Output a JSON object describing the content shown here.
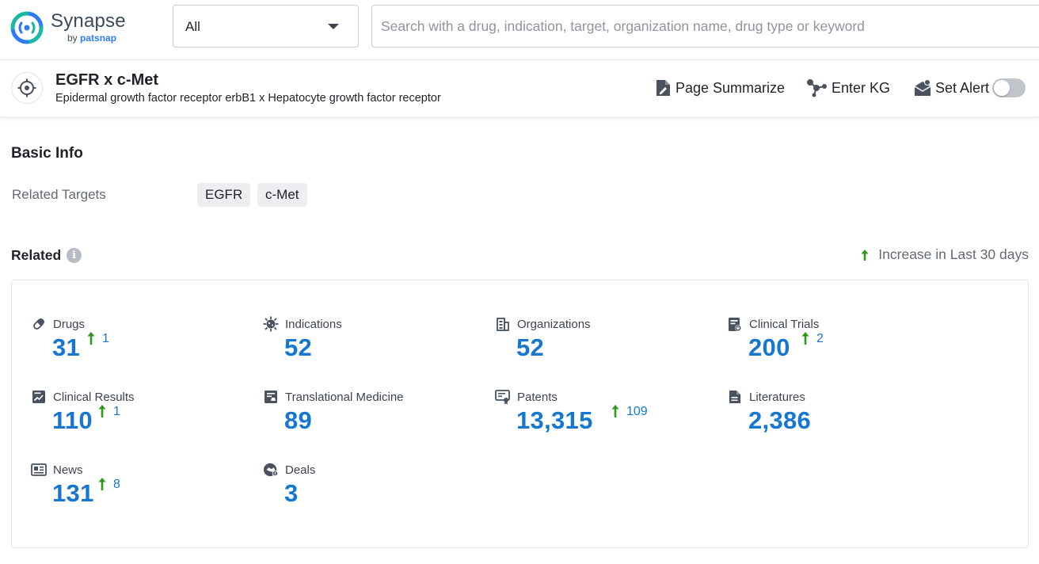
{
  "brand": {
    "name": "Synapse",
    "by": "by",
    "by_brand": "patsnap"
  },
  "search": {
    "scope_selected": "All",
    "placeholder": "Search with a drug, indication, target, organization name, drug type or keyword",
    "value": ""
  },
  "header": {
    "title": "EGFR x c-Met",
    "subtitle": "Epidermal growth factor receptor erbB1 x Hepatocyte growth factor receptor",
    "actions": {
      "summarize": "Page Summarize",
      "kg": "Enter KG",
      "alert": "Set Alert"
    },
    "alert_enabled": false
  },
  "basic_info": {
    "title": "Basic Info",
    "related_targets_label": "Related Targets",
    "targets": [
      "EGFR",
      "c-Met"
    ]
  },
  "related": {
    "title": "Related",
    "info_icon": "i",
    "legend": "Increase in Last 30 days",
    "accent_color": "#1677d2",
    "increase_color": "#2e9a1a",
    "stats": [
      {
        "label": "Drugs",
        "icon": "pill-icon",
        "value": "31",
        "increase": "1"
      },
      {
        "label": "Indications",
        "icon": "virus-icon",
        "value": "52",
        "increase": ""
      },
      {
        "label": "Organizations",
        "icon": "building-icon",
        "value": "52",
        "increase": ""
      },
      {
        "label": "Clinical Trials",
        "icon": "clipboard-icon",
        "value": "200",
        "increase": "2"
      },
      {
        "label": "Clinical Results",
        "icon": "chart-doc-icon",
        "value": "110",
        "increase": "1"
      },
      {
        "label": "Translational Medicine",
        "icon": "flask-doc-icon",
        "value": "89",
        "increase": ""
      },
      {
        "label": "Patents",
        "icon": "certificate-icon",
        "value": "13,315",
        "increase": "109"
      },
      {
        "label": "Literatures",
        "icon": "document-icon",
        "value": "2,386",
        "increase": ""
      },
      {
        "label": "News",
        "icon": "newspaper-icon",
        "value": "131",
        "increase": "8"
      },
      {
        "label": "Deals",
        "icon": "handshake-icon",
        "value": "3",
        "increase": ""
      }
    ]
  }
}
